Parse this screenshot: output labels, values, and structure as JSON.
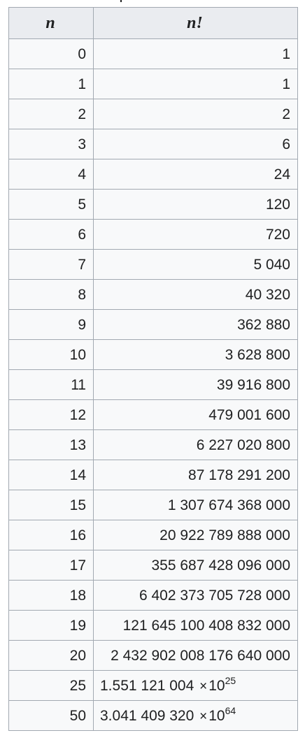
{
  "table": {
    "header": {
      "n": "n",
      "factorial": "n!"
    },
    "rows": [
      {
        "n": "0",
        "value": "1"
      },
      {
        "n": "1",
        "value": "1"
      },
      {
        "n": "2",
        "value": "2"
      },
      {
        "n": "3",
        "value": "6"
      },
      {
        "n": "4",
        "value": "24"
      },
      {
        "n": "5",
        "value": "120"
      },
      {
        "n": "6",
        "value": "720"
      },
      {
        "n": "7",
        "value": "5 040"
      },
      {
        "n": "8",
        "value": "40 320"
      },
      {
        "n": "9",
        "value": "362 880"
      },
      {
        "n": "10",
        "value": "3 628 800"
      },
      {
        "n": "11",
        "value": "39 916 800"
      },
      {
        "n": "12",
        "value": "479 001 600"
      },
      {
        "n": "13",
        "value": "6 227 020 800"
      },
      {
        "n": "14",
        "value": "87 178 291 200"
      },
      {
        "n": "15",
        "value": "1 307 674 368 000"
      },
      {
        "n": "16",
        "value": "20 922 789 888 000"
      },
      {
        "n": "17",
        "value": "355 687 428 096 000"
      },
      {
        "n": "18",
        "value": "6 402 373 705 728 000"
      },
      {
        "n": "19",
        "value": "121 645 100 408 832 000"
      },
      {
        "n": "20",
        "value": "2 432 902 008 176 640 000"
      },
      {
        "n": "25",
        "mantissa": "1.551 121 004",
        "times": "×",
        "base": "10",
        "exponent": "25"
      },
      {
        "n": "50",
        "mantissa": "3.041 409 320",
        "times": "×",
        "base": "10",
        "exponent": "64"
      }
    ]
  }
}
